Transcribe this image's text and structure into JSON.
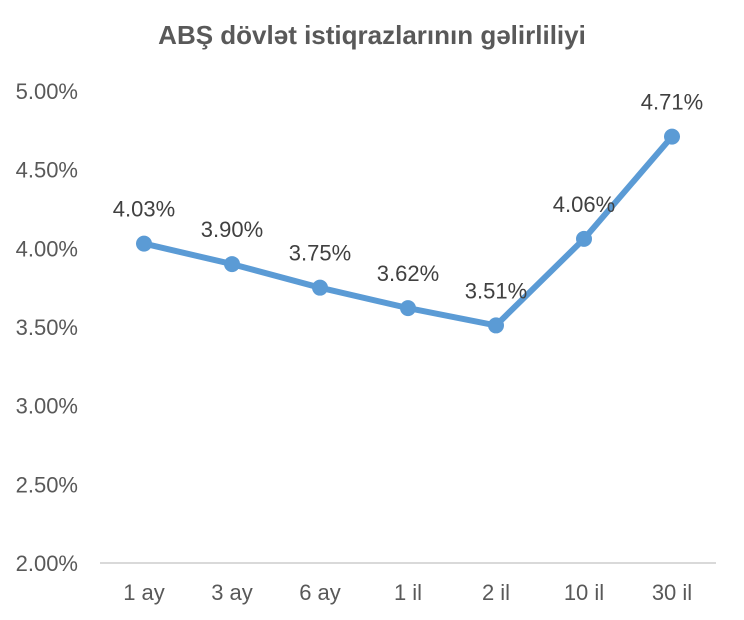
{
  "chart_data": {
    "type": "line",
    "title": "ABŞ dövlət istiqrazlarının gəlirliliyi",
    "categories": [
      "1 ay",
      "3 ay",
      "6 ay",
      "1 il",
      "2 il",
      "10 il",
      "30 il"
    ],
    "series": [
      {
        "values": [
          4.03,
          3.9,
          3.75,
          3.62,
          3.51,
          4.06,
          4.71
        ],
        "data_labels": [
          "4.03%",
          "3.90%",
          "3.75%",
          "3.62%",
          "3.51%",
          "4.06%",
          "4.71%"
        ],
        "color": "#5B9BD5"
      }
    ],
    "ylim": [
      2.0,
      5.0
    ],
    "yticks": [
      2.0,
      2.5,
      3.0,
      3.5,
      4.0,
      4.5,
      5.0
    ],
    "ytick_labels": [
      "2.00%",
      "2.50%",
      "3.00%",
      "3.50%",
      "4.00%",
      "4.50%",
      "5.00%"
    ],
    "grid": false,
    "xlabel": "",
    "ylabel": "",
    "axis_color": "#D9D9D9"
  }
}
